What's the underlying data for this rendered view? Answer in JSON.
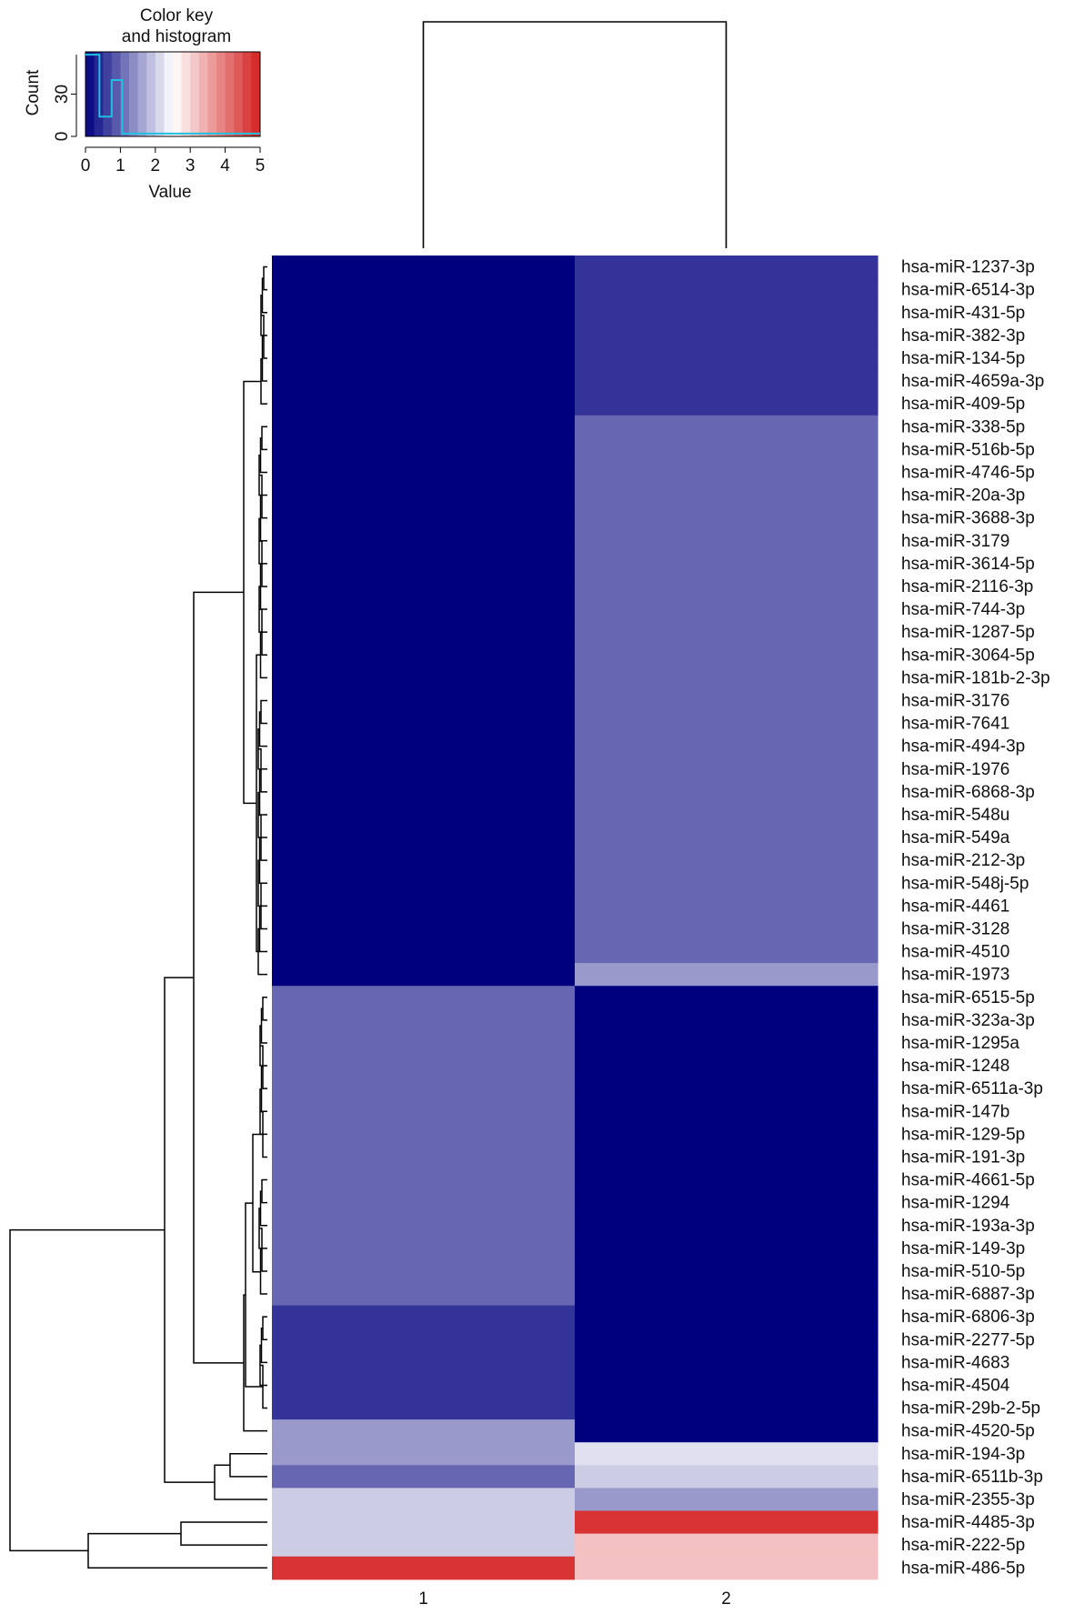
{
  "chart_data": {
    "type": "heatmap",
    "title": "",
    "xlabel": "",
    "ylabel": "",
    "columns": [
      "1",
      "2"
    ],
    "rows": [
      "hsa-miR-1237-3p",
      "hsa-miR-6514-3p",
      "hsa-miR-431-5p",
      "hsa-miR-382-3p",
      "hsa-miR-134-5p",
      "hsa-miR-4659a-3p",
      "hsa-miR-409-5p",
      "hsa-miR-338-5p",
      "hsa-miR-516b-5p",
      "hsa-miR-4746-5p",
      "hsa-miR-20a-3p",
      "hsa-miR-3688-3p",
      "hsa-miR-3179",
      "hsa-miR-3614-5p",
      "hsa-miR-2116-3p",
      "hsa-miR-744-3p",
      "hsa-miR-1287-5p",
      "hsa-miR-3064-5p",
      "hsa-miR-181b-2-3p",
      "hsa-miR-3176",
      "hsa-miR-7641",
      "hsa-miR-494-3p",
      "hsa-miR-1976",
      "hsa-miR-6868-3p",
      "hsa-miR-548u",
      "hsa-miR-549a",
      "hsa-miR-212-3p",
      "hsa-miR-548j-5p",
      "hsa-miR-4461",
      "hsa-miR-3128",
      "hsa-miR-4510",
      "hsa-miR-1973",
      "hsa-miR-6515-5p",
      "hsa-miR-323a-3p",
      "hsa-miR-1295a",
      "hsa-miR-1248",
      "hsa-miR-6511a-3p",
      "hsa-miR-147b",
      "hsa-miR-129-5p",
      "hsa-miR-191-3p",
      "hsa-miR-4661-5p",
      "hsa-miR-1294",
      "hsa-miR-193a-3p",
      "hsa-miR-149-3p",
      "hsa-miR-510-5p",
      "hsa-miR-6887-3p",
      "hsa-miR-6806-3p",
      "hsa-miR-2277-5p",
      "hsa-miR-4683",
      "hsa-miR-4504",
      "hsa-miR-29b-2-5p",
      "hsa-miR-4520-5p",
      "hsa-miR-194-3p",
      "hsa-miR-6511b-3p",
      "hsa-miR-2355-3p",
      "hsa-miR-4485-3p",
      "hsa-miR-222-5p",
      "hsa-miR-486-5p"
    ],
    "values": [
      [
        0,
        0.5
      ],
      [
        0,
        0.5
      ],
      [
        0,
        0.5
      ],
      [
        0,
        0.5
      ],
      [
        0,
        0.5
      ],
      [
        0,
        0.5
      ],
      [
        0,
        0.5
      ],
      [
        0,
        1
      ],
      [
        0,
        1
      ],
      [
        0,
        1
      ],
      [
        0,
        1
      ],
      [
        0,
        1
      ],
      [
        0,
        1
      ],
      [
        0,
        1
      ],
      [
        0,
        1
      ],
      [
        0,
        1
      ],
      [
        0,
        1
      ],
      [
        0,
        1
      ],
      [
        0,
        1
      ],
      [
        0,
        1
      ],
      [
        0,
        1
      ],
      [
        0,
        1
      ],
      [
        0,
        1
      ],
      [
        0,
        1
      ],
      [
        0,
        1
      ],
      [
        0,
        1
      ],
      [
        0,
        1
      ],
      [
        0,
        1
      ],
      [
        0,
        1
      ],
      [
        0,
        1
      ],
      [
        0,
        1
      ],
      [
        0,
        1.5
      ],
      [
        1,
        0
      ],
      [
        1,
        0
      ],
      [
        1,
        0
      ],
      [
        1,
        0
      ],
      [
        1,
        0
      ],
      [
        1,
        0
      ],
      [
        1,
        0
      ],
      [
        1,
        0
      ],
      [
        1,
        0
      ],
      [
        1,
        0
      ],
      [
        1,
        0
      ],
      [
        1,
        0
      ],
      [
        1,
        0
      ],
      [
        1,
        0
      ],
      [
        0.5,
        0
      ],
      [
        0.5,
        0
      ],
      [
        0.5,
        0
      ],
      [
        0.5,
        0
      ],
      [
        0.5,
        0
      ],
      [
        1.5,
        0
      ],
      [
        1.5,
        2.2
      ],
      [
        1,
        2
      ],
      [
        2,
        1.5
      ],
      [
        2,
        4.8
      ],
      [
        2,
        3.2
      ],
      [
        4.8,
        3.2
      ]
    ],
    "color_scale": {
      "range": [
        0,
        5
      ],
      "colors": [
        "#00007f",
        "#ffffff",
        "#d42121"
      ]
    },
    "color_key": {
      "title": "Color key and histogram",
      "title_lines": [
        "Color key",
        "and histogram"
      ],
      "xlabel": "Value",
      "ylabel": "Count",
      "x_ticks": [
        "0",
        "1",
        "2",
        "3",
        "4",
        "5"
      ],
      "y_ticks": [
        "0",
        "30"
      ],
      "histogram_color": "#20c0e0",
      "histogram_step": [
        {
          "x": 0,
          "count": 58
        },
        {
          "x": 0.4,
          "count": 14
        },
        {
          "x": 0.75,
          "count": 40
        },
        {
          "x": 1.05,
          "count": 2
        },
        {
          "x": 5,
          "count": 2
        }
      ]
    },
    "dendrogram": "hierarchical clustering of rows and columns (drawn, unlabeled)"
  }
}
